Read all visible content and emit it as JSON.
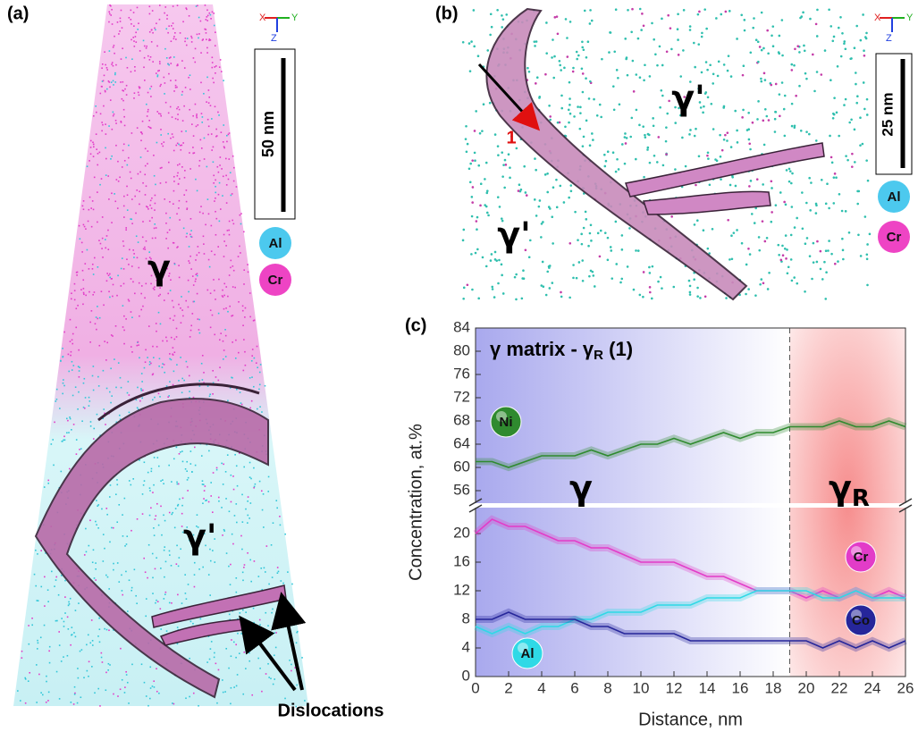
{
  "panels": {
    "a": {
      "label": "(a)",
      "phases": [
        "γ",
        "γ'"
      ],
      "scale_bar": "50 nm",
      "legend": [
        "Al",
        "Cr"
      ],
      "annotation": "Dislocations",
      "axes": [
        "X",
        "Y",
        "Z"
      ]
    },
    "b": {
      "label": "(b)",
      "phases": [
        "γ'",
        "γ'"
      ],
      "scale_bar": "25 nm",
      "legend": [
        "Al",
        "Cr"
      ],
      "marker": "1",
      "axes": [
        "X",
        "Y",
        "Z"
      ]
    }
  },
  "chart_data": {
    "type": "line",
    "label": "(c)",
    "title": {
      "main": "γ matrix - γ",
      "sub": "R",
      "end": " (1)"
    },
    "regions": [
      {
        "main": "γ",
        "sub": ""
      },
      {
        "main": "γ",
        "sub": "R"
      }
    ],
    "boundary": 19,
    "x_label": "Distance, nm",
    "y_label": "Concentration, at.%",
    "x": [
      0,
      1,
      2,
      3,
      4,
      5,
      6,
      7,
      8,
      9,
      10,
      11,
      12,
      13,
      14,
      15,
      16,
      17,
      18,
      19,
      20,
      21,
      22,
      23,
      24,
      25,
      26
    ],
    "xlim": [
      0,
      26
    ],
    "xticks": [
      0,
      2,
      4,
      6,
      8,
      10,
      12,
      14,
      16,
      18,
      20,
      22,
      24,
      26
    ],
    "ylim": [
      0,
      23.5
    ],
    "yticks": [
      0,
      4,
      8,
      12,
      16,
      20
    ],
    "upper_ylim": [
      54,
      84
    ],
    "upper_yticks": [
      56,
      60,
      64,
      68,
      72,
      76,
      80,
      84
    ],
    "series": [
      {
        "name": "Ni",
        "color": "#2f8a2f",
        "axis": "upper",
        "values": [
          61,
          61,
          60,
          61,
          62,
          62,
          62,
          63,
          62,
          63,
          64,
          64,
          65,
          64,
          65,
          66,
          65,
          66,
          66,
          67,
          67,
          67,
          68,
          67,
          67,
          68,
          67
        ]
      },
      {
        "name": "Cr",
        "color": "#e23cc8",
        "values": [
          20,
          22,
          21,
          21,
          20,
          19,
          19,
          18,
          18,
          17,
          16,
          16,
          16,
          15,
          14,
          14,
          13,
          12,
          12,
          12,
          11,
          12,
          11,
          12,
          11,
          12,
          11
        ]
      },
      {
        "name": "Al",
        "color": "#2fd9e6",
        "values": [
          7,
          6,
          7,
          6,
          7,
          7,
          8,
          8,
          9,
          9,
          9,
          10,
          10,
          10,
          11,
          11,
          11,
          12,
          12,
          12,
          12,
          11,
          11,
          12,
          11,
          11,
          11
        ]
      },
      {
        "name": "Co",
        "color": "#26269a",
        "values": [
          8,
          8,
          9,
          8,
          8,
          8,
          8,
          7,
          7,
          6,
          6,
          6,
          6,
          5,
          5,
          5,
          5,
          5,
          5,
          5,
          5,
          4,
          5,
          4,
          5,
          4,
          5
        ]
      }
    ]
  }
}
